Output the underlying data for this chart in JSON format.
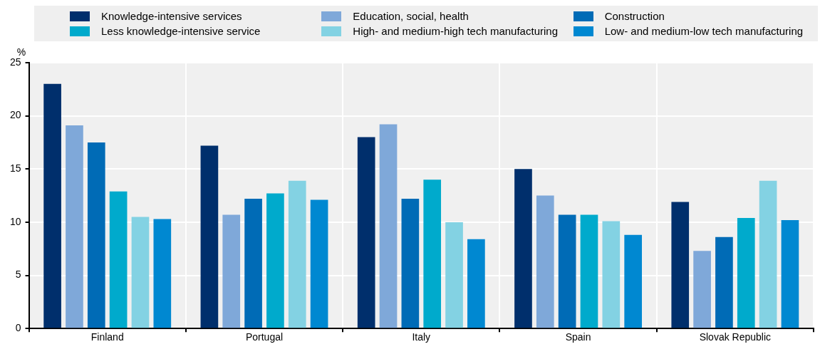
{
  "chart_data": {
    "type": "bar",
    "ylabel": "%",
    "categories": [
      "Finland",
      "Portugal",
      "Italy",
      "Spain",
      "Slovak Republic"
    ],
    "series": [
      {
        "name": "Knowledge-intensive services",
        "color": "#002f6c",
        "values": [
          23.0,
          17.2,
          18.0,
          15.0,
          11.9
        ]
      },
      {
        "name": "Education, social, health",
        "color": "#7fa8d9",
        "values": [
          19.1,
          10.7,
          19.2,
          12.5,
          7.3
        ]
      },
      {
        "name": "Construction",
        "color": "#006bb6",
        "values": [
          17.5,
          12.2,
          12.2,
          10.7,
          8.6
        ]
      },
      {
        "name": "Less knowledge-intensive service",
        "color": "#00aacc",
        "values": [
          12.9,
          12.7,
          14.0,
          10.7,
          10.4
        ]
      },
      {
        "name": "High- and medium-high tech manufacturing",
        "color": "#83d2e3",
        "values": [
          10.5,
          13.9,
          10.0,
          10.1,
          13.9
        ]
      },
      {
        "name": "Low- and medium-low tech manufacturing",
        "color": "#0088d1",
        "values": [
          10.3,
          12.1,
          8.4,
          8.8,
          10.2
        ]
      }
    ],
    "ylim": [
      0,
      25
    ],
    "yticks": [
      0,
      5,
      10,
      15,
      20,
      25
    ],
    "grid": true,
    "legend": "top"
  }
}
